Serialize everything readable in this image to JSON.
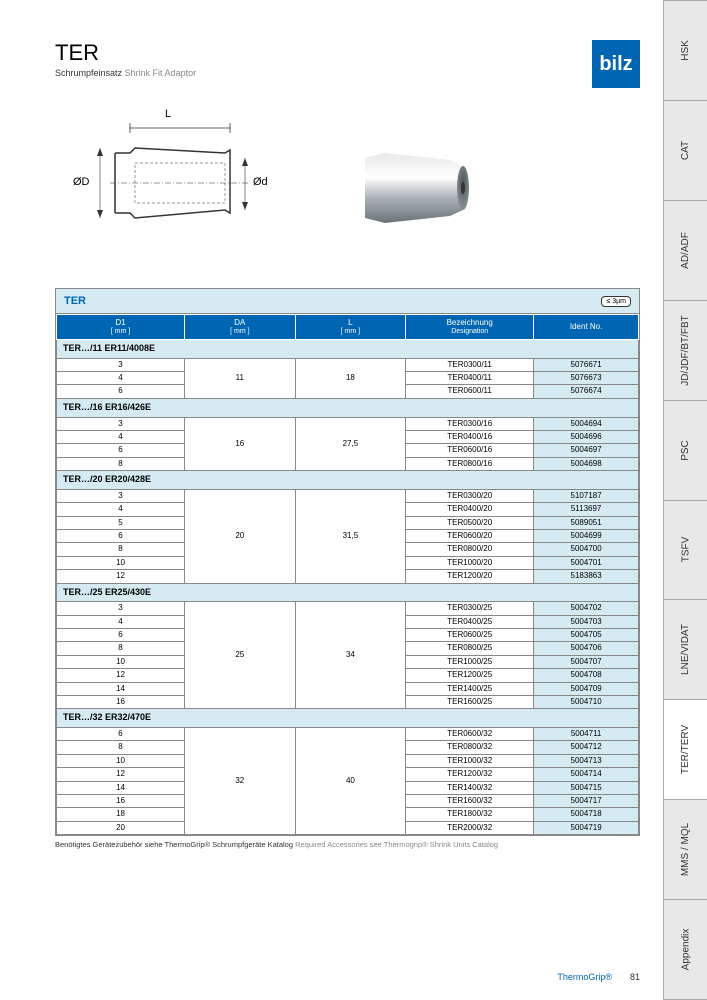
{
  "header": {
    "title": "TER",
    "subtitle_de": "Schrumpfeinsatz",
    "subtitle_en": "Shrink Fit Adaptor",
    "logo_text": "bilz",
    "logo_bg": "#0066b3"
  },
  "diagram": {
    "label_L": "L",
    "label_D": "ØD",
    "label_d": "Ød"
  },
  "table": {
    "title": "TER",
    "accuracy_badge": "≤ 3µm",
    "columns": [
      {
        "label": "D1",
        "unit": "[ mm ]"
      },
      {
        "label": "DA",
        "unit": "[ mm ]"
      },
      {
        "label": "L",
        "unit": "[ mm ]"
      },
      {
        "label": "Bezeichnung",
        "unit": "Designation"
      },
      {
        "label": "Ident No.",
        "unit": ""
      }
    ],
    "groups": [
      {
        "label": "TER…/11  ER11/4008E",
        "DA": "11",
        "L": "18",
        "rows": [
          {
            "D1": "3",
            "designation": "TER0300/11",
            "ident": "5076671"
          },
          {
            "D1": "4",
            "designation": "TER0400/11",
            "ident": "5076673"
          },
          {
            "D1": "6",
            "designation": "TER0600/11",
            "ident": "5076674"
          }
        ]
      },
      {
        "label": "TER…/16  ER16/426E",
        "DA": "16",
        "L": "27,5",
        "rows": [
          {
            "D1": "3",
            "designation": "TER0300/16",
            "ident": "5004694"
          },
          {
            "D1": "4",
            "designation": "TER0400/16",
            "ident": "5004696"
          },
          {
            "D1": "6",
            "designation": "TER0600/16",
            "ident": "5004697"
          },
          {
            "D1": "8",
            "designation": "TER0800/16",
            "ident": "5004698"
          }
        ]
      },
      {
        "label": "TER…/20  ER20/428E",
        "DA": "20",
        "L": "31,5",
        "rows": [
          {
            "D1": "3",
            "designation": "TER0300/20",
            "ident": "5107187"
          },
          {
            "D1": "4",
            "designation": "TER0400/20",
            "ident": "5113697"
          },
          {
            "D1": "5",
            "designation": "TER0500/20",
            "ident": "5089051"
          },
          {
            "D1": "6",
            "designation": "TER0600/20",
            "ident": "5004699"
          },
          {
            "D1": "8",
            "designation": "TER0800/20",
            "ident": "5004700"
          },
          {
            "D1": "10",
            "designation": "TER1000/20",
            "ident": "5004701"
          },
          {
            "D1": "12",
            "designation": "TER1200/20",
            "ident": "5183863"
          }
        ]
      },
      {
        "label": "TER…/25  ER25/430E",
        "DA": "25",
        "L": "34",
        "rows": [
          {
            "D1": "3",
            "designation": "TER0300/25",
            "ident": "5004702"
          },
          {
            "D1": "4",
            "designation": "TER0400/25",
            "ident": "5004703"
          },
          {
            "D1": "6",
            "designation": "TER0600/25",
            "ident": "5004705"
          },
          {
            "D1": "8",
            "designation": "TER0800/25",
            "ident": "5004706"
          },
          {
            "D1": "10",
            "designation": "TER1000/25",
            "ident": "5004707"
          },
          {
            "D1": "12",
            "designation": "TER1200/25",
            "ident": "5004708"
          },
          {
            "D1": "14",
            "designation": "TER1400/25",
            "ident": "5004709"
          },
          {
            "D1": "16",
            "designation": "TER1600/25",
            "ident": "5004710"
          }
        ]
      },
      {
        "label": "TER…/32  ER32/470E",
        "DA": "32",
        "L": "40",
        "rows": [
          {
            "D1": "6",
            "designation": "TER0600/32",
            "ident": "5004711"
          },
          {
            "D1": "8",
            "designation": "TER0800/32",
            "ident": "5004712"
          },
          {
            "D1": "10",
            "designation": "TER1000/32",
            "ident": "5004713"
          },
          {
            "D1": "12",
            "designation": "TER1200/32",
            "ident": "5004714"
          },
          {
            "D1": "14",
            "designation": "TER1400/32",
            "ident": "5004715"
          },
          {
            "D1": "16",
            "designation": "TER1600/32",
            "ident": "5004717"
          },
          {
            "D1": "18",
            "designation": "TER1800/32",
            "ident": "5004718"
          },
          {
            "D1": "20",
            "designation": "TER2000/32",
            "ident": "5004719"
          }
        ]
      }
    ]
  },
  "footnote": {
    "de": "Benötigtes Gerätezubehör siehe ThermoGrip® Schrumpfgeräte Katalog",
    "en": "Required Accessories see Thermogrip® Shrink Units Catalog"
  },
  "footer": {
    "brand": "ThermoGrip®",
    "page": "81"
  },
  "tabs": [
    {
      "label": "HSK",
      "active": false
    },
    {
      "label": "CAT",
      "active": false
    },
    {
      "label": "AD/ADF",
      "active": false
    },
    {
      "label": "JD/JDF/BT/FBT",
      "active": false
    },
    {
      "label": "PSC",
      "active": false
    },
    {
      "label": "TSFV",
      "active": false
    },
    {
      "label": "LNE/VIDAT",
      "active": false
    },
    {
      "label": "TER/TERV",
      "active": true
    },
    {
      "label": "MMS / MQL",
      "active": false
    },
    {
      "label": "Appendix",
      "active": false
    }
  ],
  "colors": {
    "primary": "#0066b3",
    "light_blue": "#d6eaf2",
    "border": "#888888",
    "tab_bg": "#e8e8e8"
  }
}
